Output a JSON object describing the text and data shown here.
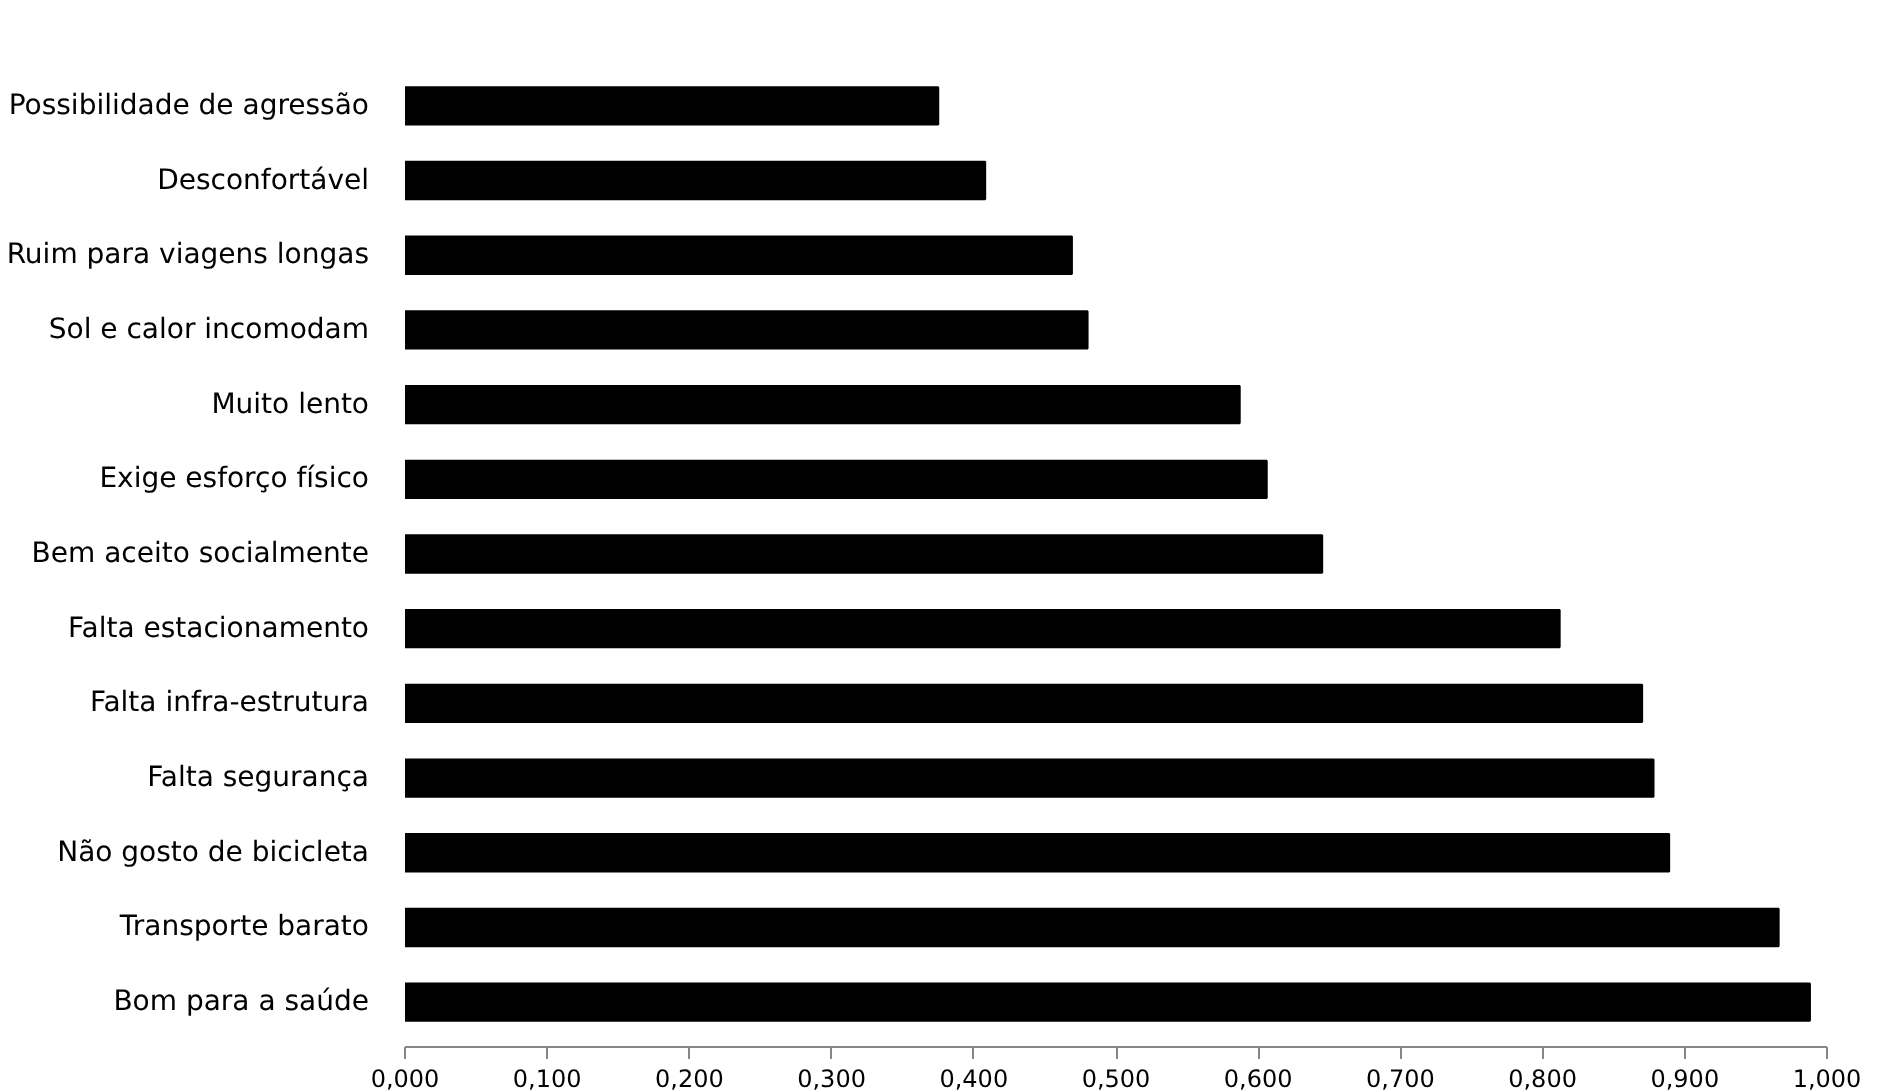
{
  "chart_data": {
    "type": "bar",
    "orientation": "horizontal",
    "color": "#000000",
    "categories": [
      "Possibilidade de agressão",
      "Desconfortável",
      "Ruim para viagens longas",
      "Sol e calor incomodam",
      "Muito lento",
      "Exige esforço físico",
      "Bem aceito socialmente",
      "Falta estacionamento",
      "Falta infra-estrutura",
      "Falta segurança",
      "Não gosto de bicicleta",
      "Transporte barato",
      "Bom para a saúde"
    ],
    "values": [
      0.375,
      0.408,
      0.469,
      0.48,
      0.587,
      0.606,
      0.645,
      0.812,
      0.87,
      0.878,
      0.889,
      0.966,
      0.988
    ],
    "xlim": [
      0,
      1
    ],
    "xticks": [
      {
        "value": 0,
        "label": "0,000"
      },
      {
        "value": 0.1,
        "label": "0,100"
      },
      {
        "value": 0.2,
        "label": "0,200"
      },
      {
        "value": 0.3,
        "label": "0,300"
      },
      {
        "value": 0.4,
        "label": "0,400"
      },
      {
        "value": 0.5,
        "label": "0,500"
      },
      {
        "value": 0.6,
        "label": "0,600"
      },
      {
        "value": 0.7,
        "label": "0,700"
      },
      {
        "value": 0.8,
        "label": "0,800"
      },
      {
        "value": 0.9,
        "label": "0,900"
      },
      {
        "value": 1,
        "label": "1,000"
      }
    ],
    "grid": false
  }
}
